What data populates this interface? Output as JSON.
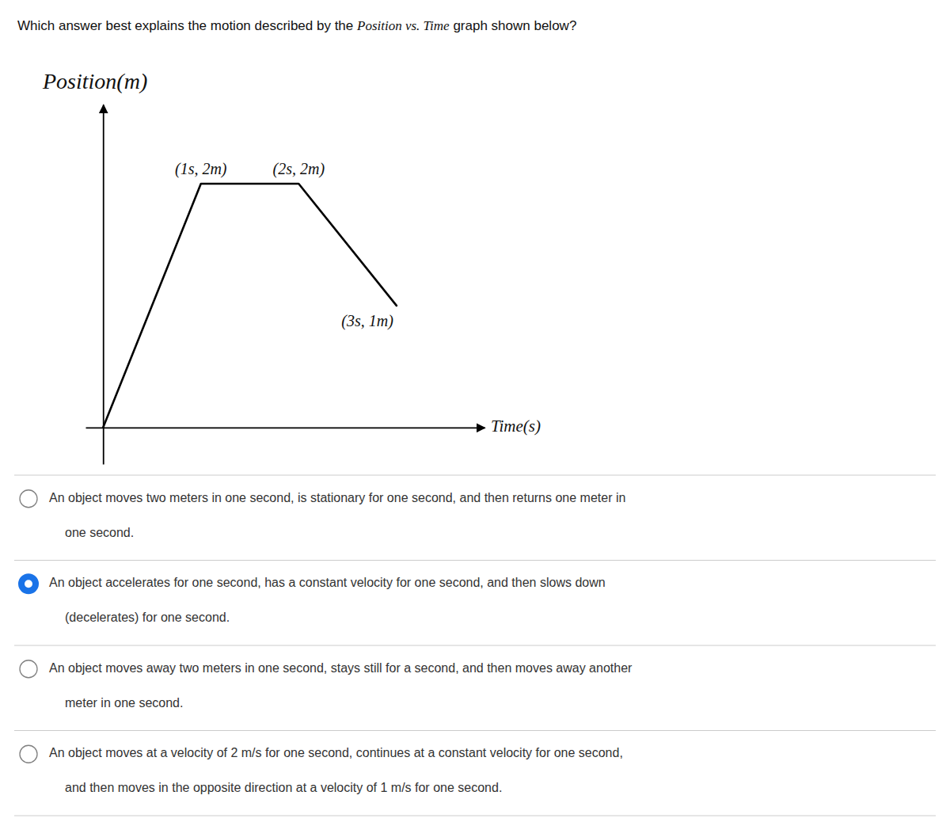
{
  "chart_data": {
    "type": "line",
    "x": [
      0,
      1,
      2,
      3
    ],
    "values": [
      0,
      2,
      2,
      1
    ],
    "color": "#000000",
    "xlabel": "Time(s)",
    "ylabel": "Position(m)",
    "xlim": [
      -0.18,
      3.9
    ],
    "ylim": [
      -0.3,
      2.65
    ],
    "xticks": [],
    "yticks": [],
    "tick_labels": false,
    "grid": false,
    "annotations": [
      {
        "text": "(1s, 2m)",
        "x": 1,
        "y": 2
      },
      {
        "text": "(2s, 2m)",
        "x": 2,
        "y": 2
      },
      {
        "text": "(3s, 1m)",
        "x": 3,
        "y": 1
      }
    ]
  },
  "question": [
    {
      "text": "Which answer best explains the motion described by the ",
      "style": "normal"
    },
    {
      "text": "Position vs. Time",
      "style": "italic"
    },
    {
      "text": " graph shown below?",
      "style": "normal"
    }
  ],
  "options": {
    "selected_color": "#1a73e8",
    "items": [
      {
        "line1": "An object moves two meters in one second, is stationary for one second, and then returns one meter in",
        "line2": "one second.",
        "selected": false
      },
      {
        "line1": "An object accelerates for one second, has a constant velocity for one second, and then slows down",
        "line2": "(decelerates) for one second.",
        "selected": true
      },
      {
        "line1": "An object moves away two meters in one second, stays still for a second, and then moves away another",
        "line2": "meter in one second.",
        "selected": false
      },
      {
        "line1": "An object moves at a velocity of 2 m/s for one second, continues at a constant velocity for one second,",
        "line2": "and then moves in the opposite direction at a velocity of 1 m/s for one second.",
        "selected": false
      }
    ]
  }
}
